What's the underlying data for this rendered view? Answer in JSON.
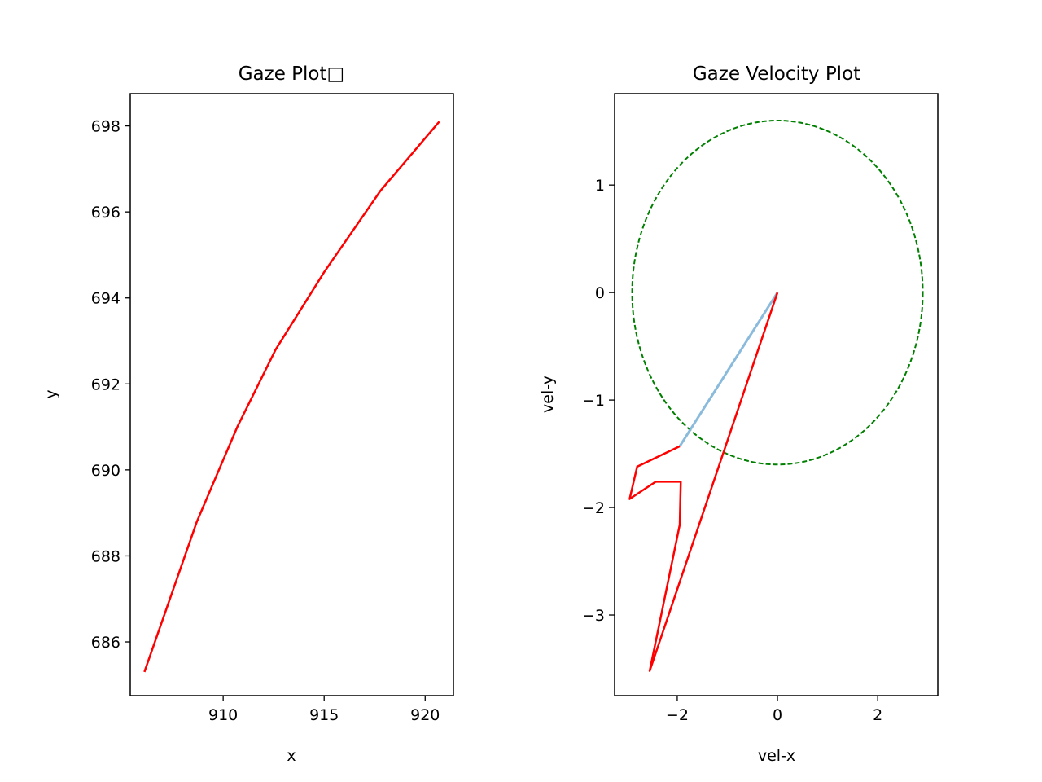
{
  "chart_data": [
    {
      "type": "line",
      "title": "Gaze Plot□",
      "xlabel": "x",
      "ylabel": "y",
      "xlim": [
        905.4,
        921.4
      ],
      "ylim": [
        684.75,
        698.75
      ],
      "xticks": [
        910,
        915,
        920
      ],
      "xtick_labels": [
        "910",
        "915",
        "920"
      ],
      "yticks": [
        686,
        688,
        690,
        692,
        694,
        696,
        698
      ],
      "ytick_labels": [
        "686",
        "688",
        "690",
        "692",
        "694",
        "696",
        "698"
      ],
      "grid": false,
      "series": [
        {
          "color": "#ff0000",
          "x": [
            906.1,
            908.7,
            910.7,
            912.6,
            915.0,
            917.8,
            920.7
          ],
          "y": [
            685.3,
            688.8,
            691.0,
            692.8,
            694.6,
            696.5,
            698.1
          ]
        }
      ]
    },
    {
      "type": "line",
      "title": "Gaze Velocity Plot",
      "xlabel": "vel-x",
      "ylabel": "vel-y",
      "xlim": [
        -3.25,
        3.2
      ],
      "ylim": [
        -3.75,
        1.85
      ],
      "xticks": [
        -2,
        0,
        2
      ],
      "xtick_labels": [
        "−2",
        "0",
        "2"
      ],
      "yticks": [
        -3,
        -2,
        -1,
        0,
        1
      ],
      "ytick_labels": [
        "−3",
        "−2",
        "−1",
        "0",
        "1"
      ],
      "grid": false,
      "series": [
        {
          "color": "#ff0000",
          "x": [
            0.0,
            -2.55,
            -1.95,
            -1.93,
            -2.43,
            -2.95,
            -2.8,
            -1.95
          ],
          "y": [
            0.0,
            -3.52,
            -2.16,
            -1.76,
            -1.76,
            -1.92,
            -1.62,
            -1.43
          ]
        },
        {
          "color": "#8bbbdc",
          "x": [
            0.0,
            -1.95
          ],
          "y": [
            0.0,
            -1.43
          ]
        }
      ],
      "circle": {
        "center": [
          0,
          0
        ],
        "rx": 2.9,
        "ry": 1.6,
        "color": "#008000",
        "style": "dashed"
      }
    }
  ]
}
